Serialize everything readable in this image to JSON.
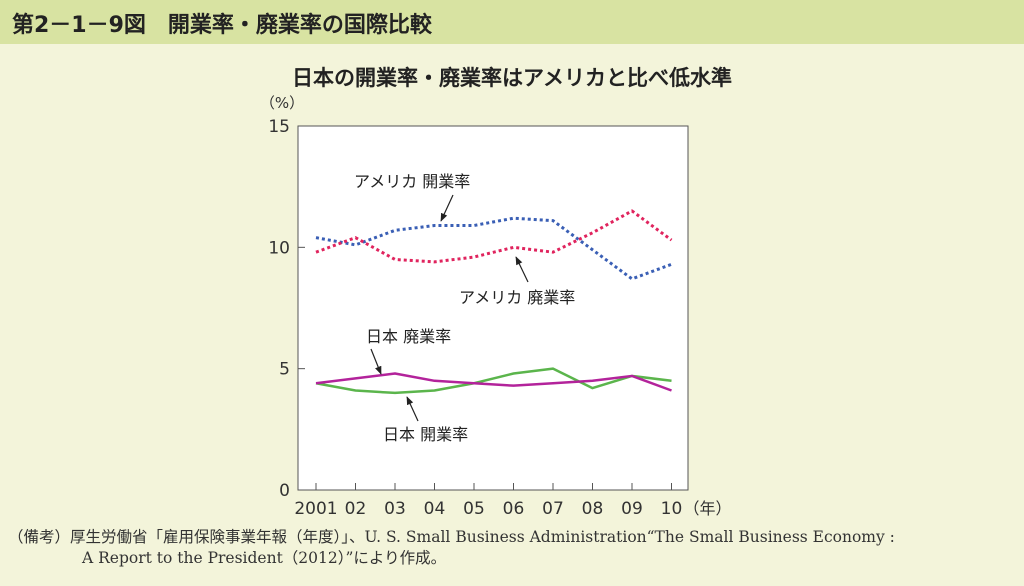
{
  "header": {
    "figure_title": "第2－1－9図　開業率・廃業率の国際比較"
  },
  "chart_data": {
    "type": "line",
    "title": "日本の開業率・廃業率はアメリカと比べ低水準",
    "ylabel": "（%）",
    "xunit": "（年）",
    "ylim": [
      0,
      15
    ],
    "yticks": [
      "0",
      "5",
      "10",
      "15"
    ],
    "categories": [
      "2001",
      "02",
      "03",
      "04",
      "05",
      "06",
      "07",
      "08",
      "09",
      "10"
    ],
    "grid": false,
    "series": [
      {
        "name": "アメリカ 開業率",
        "color": "#3a5fb5",
        "dash": true,
        "values": [
          10.4,
          10.1,
          10.7,
          10.9,
          10.9,
          11.2,
          11.1,
          9.9,
          8.7,
          9.3
        ]
      },
      {
        "name": "アメリカ 廃業率",
        "color": "#e0245e",
        "dash": true,
        "values": [
          9.8,
          10.4,
          9.5,
          9.4,
          9.6,
          10.0,
          9.8,
          10.6,
          11.5,
          10.3
        ]
      },
      {
        "name": "日本 開業率",
        "color": "#5bb54c",
        "dash": false,
        "values": [
          4.4,
          4.1,
          4.0,
          4.1,
          4.4,
          4.8,
          5.0,
          4.2,
          4.7,
          4.5
        ]
      },
      {
        "name": "日本 廃業率",
        "color": "#b3239b",
        "dash": false,
        "values": [
          4.4,
          4.6,
          4.8,
          4.5,
          4.4,
          4.3,
          4.4,
          4.5,
          4.7,
          4.1
        ]
      }
    ]
  },
  "note": {
    "line1": "（備考）厚生労働省「雇用保険事業年報（年度）」、U. S. Small Business Administration“The Small Business Economy :",
    "line2": "A Report to the President（2012）”により作成。"
  }
}
